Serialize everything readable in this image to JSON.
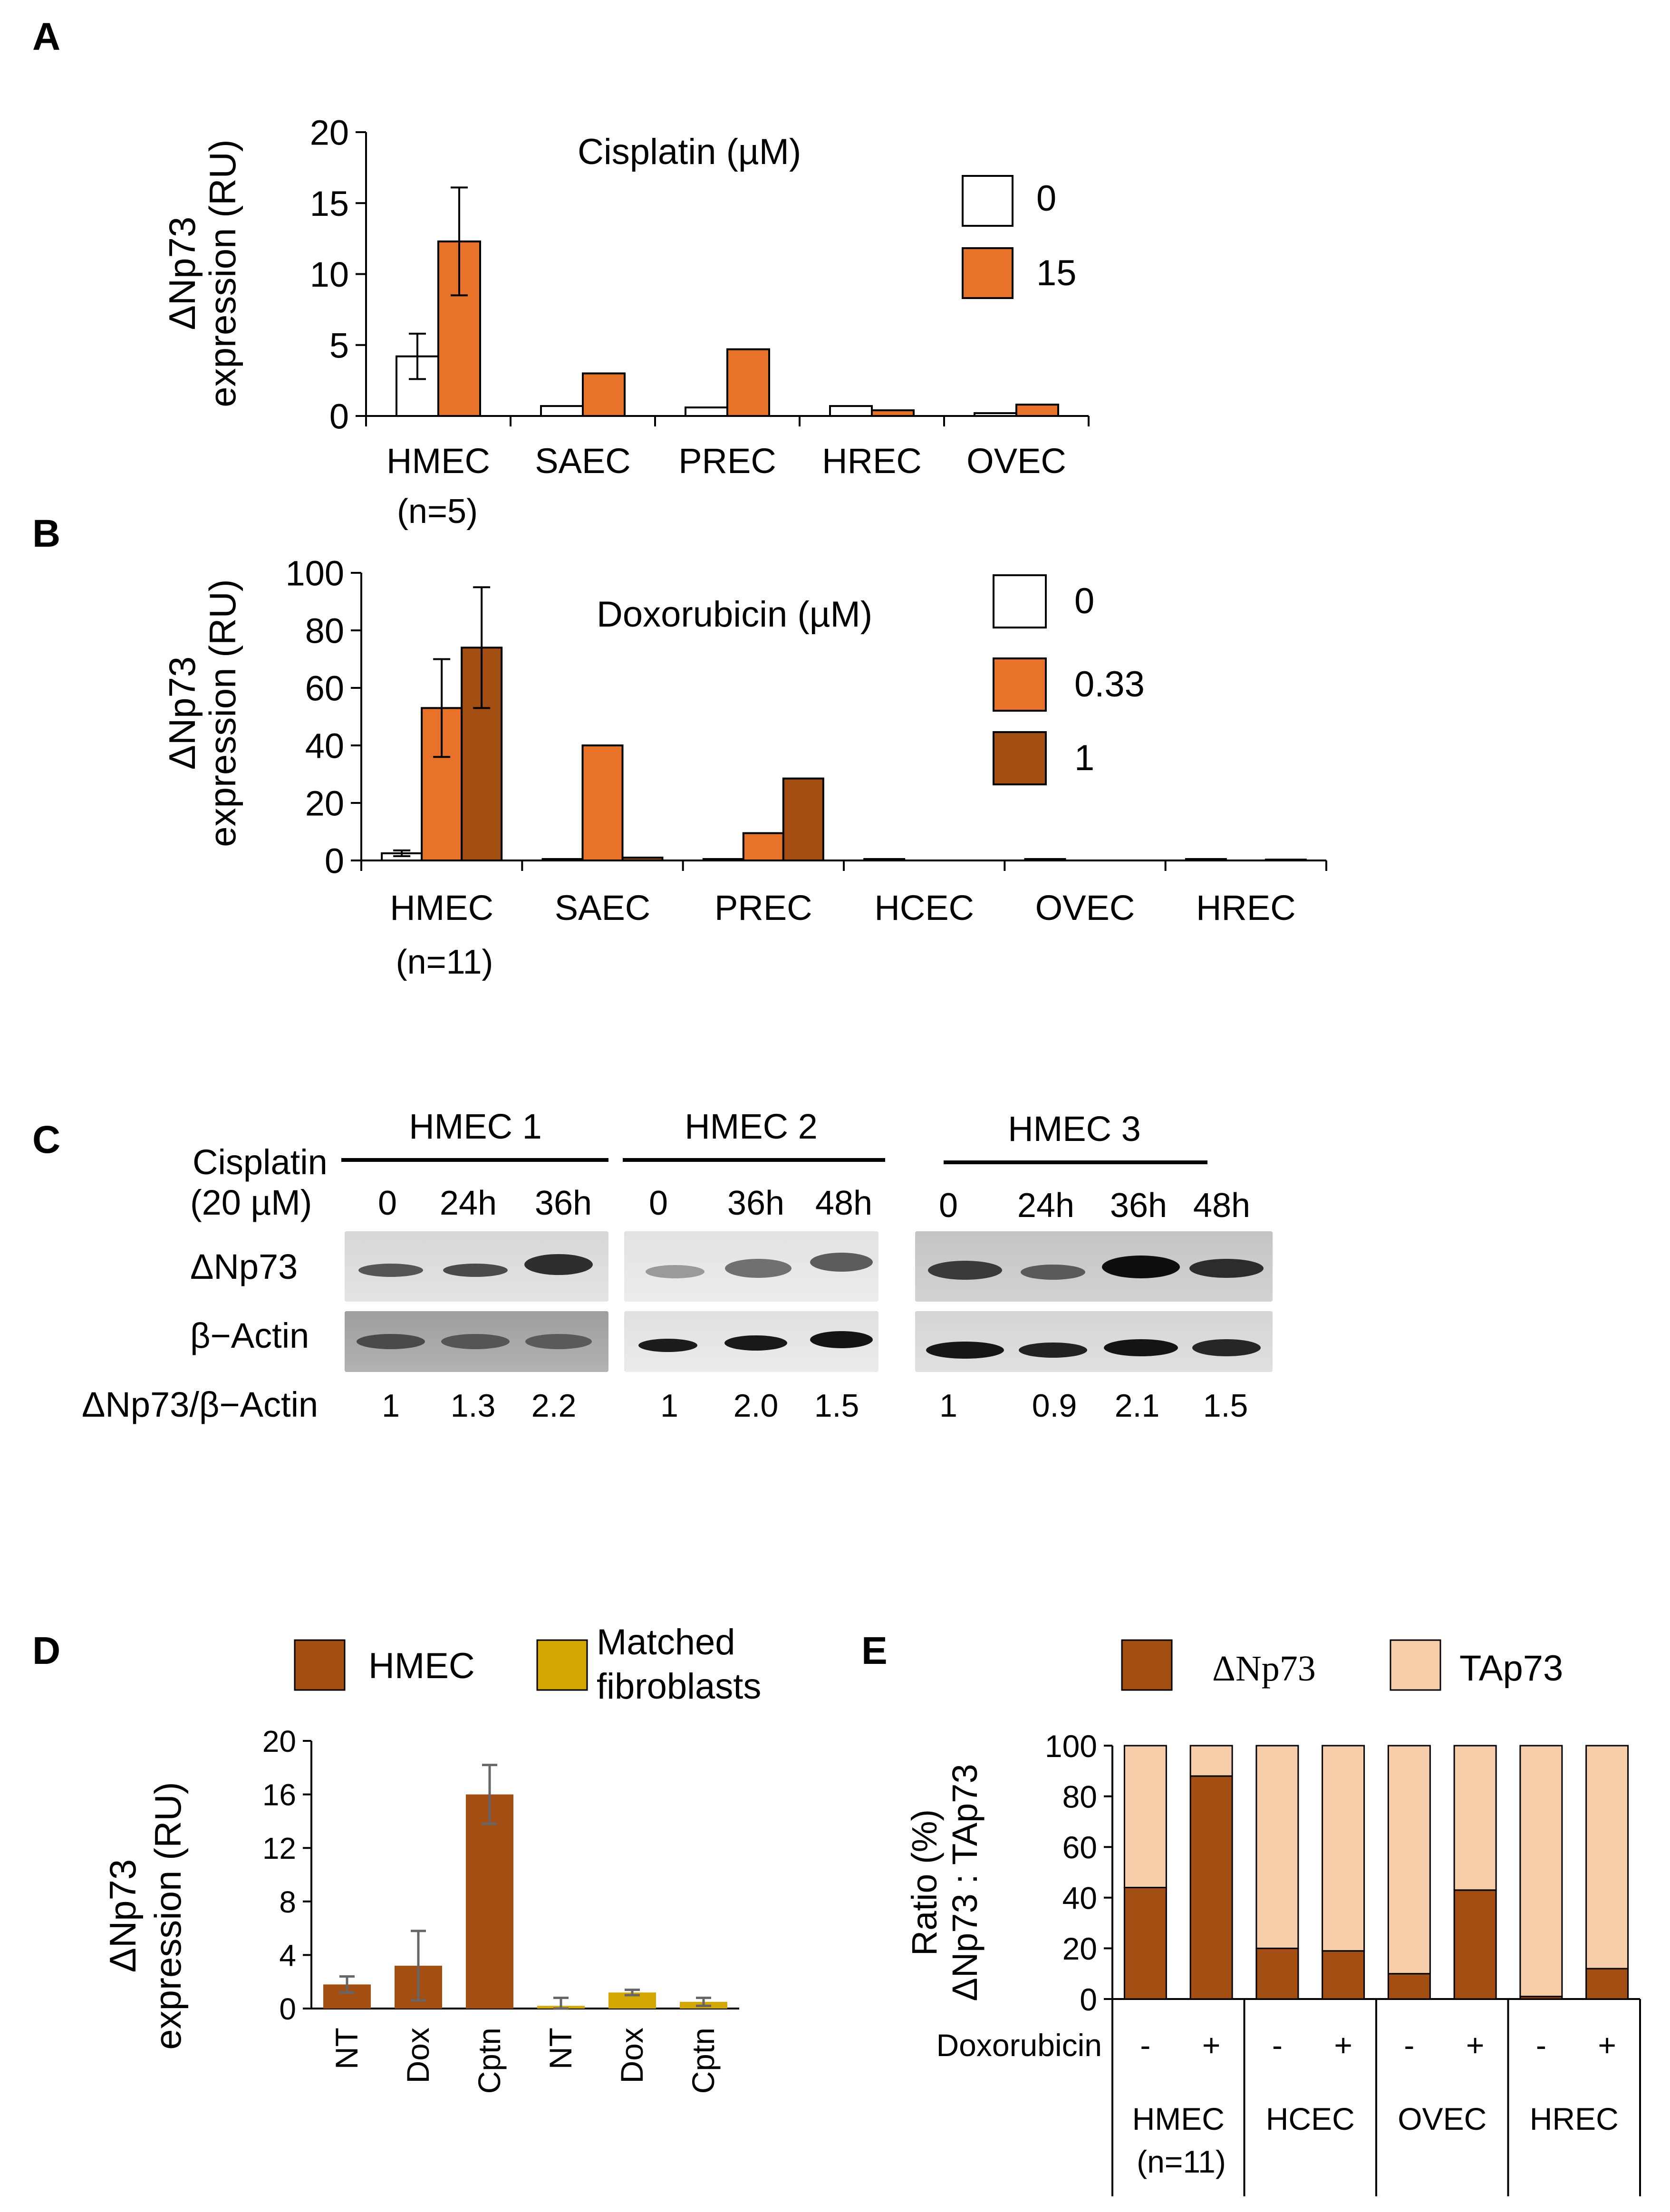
{
  "colors": {
    "white": "#ffffff",
    "orange": "#e8722a",
    "brown": "#a34e12",
    "gold": "#d4a600",
    "peach": "#f7cdaa",
    "errbar_gray": "#666666"
  },
  "panelA": {
    "letter": "A",
    "title": "Cisplatin (µM)",
    "ylabel_line1": "ΔNp73",
    "ylabel_line2": "expression (RU)",
    "legend": [
      "0",
      "15"
    ],
    "xtick_sub": "(n=5)",
    "chart_data": {
      "type": "bar",
      "title": "Cisplatin (µM)",
      "ylabel": "ΔNp73 expression (RU)",
      "ylim": [
        0,
        20
      ],
      "yticks": [
        0,
        5,
        10,
        15,
        20
      ],
      "categories": [
        "HMEC",
        "SAEC",
        "PREC",
        "HREC",
        "OVEC"
      ],
      "series": [
        {
          "name": "0",
          "color": "#ffffff",
          "values": [
            4.2,
            0.7,
            0.6,
            0.7,
            0.2
          ],
          "errors": [
            1.6,
            0,
            0,
            0,
            0
          ]
        },
        {
          "name": "15",
          "color": "#e8722a",
          "values": [
            12.3,
            3.0,
            4.7,
            0.4,
            0.8
          ],
          "errors": [
            3.8,
            0,
            0,
            0,
            0
          ]
        }
      ]
    }
  },
  "panelB": {
    "letter": "B",
    "title": "Doxorubicin (µM)",
    "ylabel_line1": "ΔNp73",
    "ylabel_line2": "expression (RU)",
    "legend": [
      "0",
      "0.33",
      "1"
    ],
    "xtick_sub": "(n=11)",
    "chart_data": {
      "type": "bar",
      "title": "Doxorubicin (µM)",
      "ylabel": "ΔNp73 expression (RU)",
      "ylim": [
        0,
        100
      ],
      "yticks": [
        0,
        20,
        40,
        60,
        80,
        100
      ],
      "categories": [
        "HMEC",
        "SAEC",
        "PREC",
        "HCEC",
        "OVEC",
        "HREC"
      ],
      "series": [
        {
          "name": "0",
          "color": "#ffffff",
          "values": [
            2.5,
            0.5,
            0.5,
            0.5,
            0.5,
            0.5
          ],
          "errors": [
            1,
            0,
            0,
            0,
            0,
            0
          ]
        },
        {
          "name": "0.33",
          "color": "#e8722a",
          "values": [
            53,
            40,
            9.5,
            0,
            0,
            0
          ],
          "errors": [
            17,
            0,
            0,
            0,
            0,
            0
          ]
        },
        {
          "name": "1",
          "color": "#a34e12",
          "values": [
            74,
            1,
            28.5,
            0,
            0,
            0.3
          ],
          "errors": [
            21,
            0,
            0,
            0,
            0,
            0
          ]
        }
      ]
    }
  },
  "panelC": {
    "letter": "C",
    "treatment_line1": "Cisplatin",
    "treatment_line2": "(20 µM)",
    "row_labels": [
      "ΔNp73",
      "β−Actin"
    ],
    "ratio_label": "ΔNp73/β−Actin",
    "groups": [
      {
        "name": "HMEC 1",
        "times": [
          "0",
          "24h",
          "36h"
        ],
        "ratios": [
          "1",
          "1.3",
          "2.2"
        ]
      },
      {
        "name": "HMEC 2",
        "times": [
          "0",
          "36h",
          "48h"
        ],
        "ratios": [
          "1",
          "2.0",
          "1.5"
        ]
      },
      {
        "name": "HMEC 3",
        "times": [
          "0",
          "24h",
          "36h",
          "48h"
        ],
        "ratios": [
          "1",
          "0.9",
          "2.1",
          "1.5"
        ]
      }
    ]
  },
  "panelD": {
    "letter": "D",
    "ylabel_line1": "ΔNp73",
    "ylabel_line2": "expression (RU)",
    "legend": [
      "HMEC",
      "Matched",
      "fibroblasts"
    ],
    "chart_data": {
      "type": "bar",
      "ylabel": "ΔNp73 expression (RU)",
      "ylim": [
        0,
        20
      ],
      "yticks": [
        0,
        4,
        8,
        12,
        16,
        20
      ],
      "categories": [
        "NT",
        "Dox",
        "Cptn",
        "NT",
        "Dox",
        "Cptn"
      ],
      "values": [
        1.8,
        3.2,
        16,
        0.2,
        1.2,
        0.5
      ],
      "errors": [
        0.6,
        2.6,
        2.2,
        0.6,
        0.2,
        0.3
      ],
      "bar_series": [
        "HMEC",
        "HMEC",
        "HMEC",
        "Matched fibroblasts",
        "Matched fibroblasts",
        "Matched fibroblasts"
      ],
      "series_colors": {
        "HMEC": "#a34e12",
        "Matched fibroblasts": "#d4a600"
      }
    }
  },
  "panelE": {
    "letter": "E",
    "ylabel_line1": "Ratio (%)",
    "ylabel_line2": "ΔNp73 : TAp73",
    "legend": [
      "ΔNp73",
      "TAp73"
    ],
    "row_label": "Doxorubicin",
    "doxo_signs": [
      "-",
      "+",
      "-",
      "+",
      "-",
      "+",
      "-",
      "+"
    ],
    "cell_groups": [
      "HMEC",
      "HCEC",
      "OVEC",
      "HREC"
    ],
    "cell_sub": "(n=11)",
    "chart_data": {
      "type": "bar",
      "stacked": true,
      "ylabel": "Ratio (%) ΔNp73 : TAp73",
      "ylim": [
        0,
        100
      ],
      "yticks": [
        0,
        20,
        40,
        60,
        80,
        100
      ],
      "groups": [
        "HMEC",
        "HCEC",
        "OVEC",
        "HREC"
      ],
      "doxorubicin": [
        "-",
        "+",
        "-",
        "+",
        "-",
        "+",
        "-",
        "+"
      ],
      "series": [
        {
          "name": "ΔNp73",
          "color": "#a34e12",
          "values": [
            44,
            88,
            20,
            19,
            10,
            43,
            1,
            12
          ]
        },
        {
          "name": "TAp73",
          "color": "#f7cdaa",
          "values": [
            56,
            12,
            80,
            81,
            90,
            57,
            99,
            88
          ]
        }
      ]
    }
  }
}
